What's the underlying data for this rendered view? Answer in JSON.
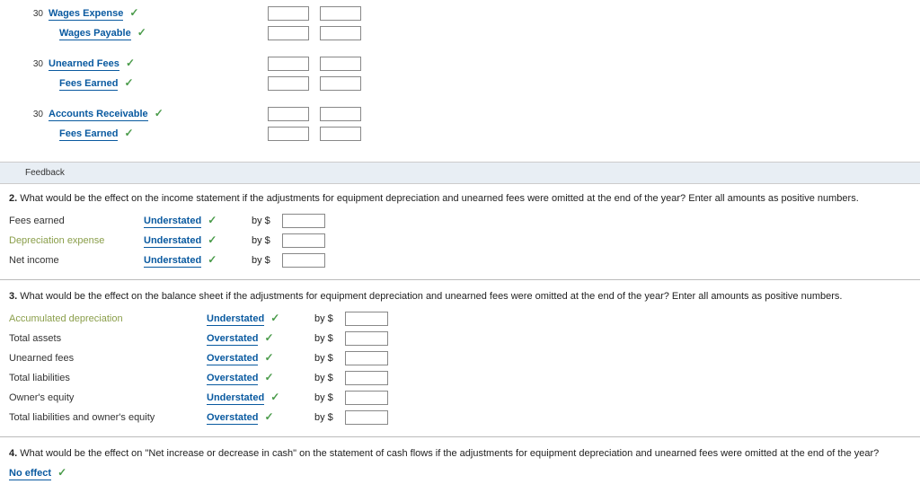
{
  "journal": {
    "groups": [
      {
        "day": "30",
        "rows": [
          {
            "account": "Wages Expense",
            "indent": false
          },
          {
            "account": "Wages Payable",
            "indent": true
          }
        ]
      },
      {
        "day": "30",
        "rows": [
          {
            "account": "Unearned Fees",
            "indent": false
          },
          {
            "account": "Fees Earned",
            "indent": true
          }
        ]
      },
      {
        "day": "30",
        "rows": [
          {
            "account": "Accounts Receivable",
            "indent": false
          },
          {
            "account": "Fees Earned",
            "indent": true
          }
        ]
      }
    ]
  },
  "feedback_label": "Feedback",
  "q2": {
    "num": "2.",
    "text": "What would be the effect on the income statement if the adjustments for equipment depreciation and unearned fees were omitted at the end of the year? Enter all amounts as positive numbers.",
    "rows": [
      {
        "label": "Fees earned",
        "green": false,
        "dd": "Understated"
      },
      {
        "label": "Depreciation expense",
        "green": true,
        "dd": "Understated"
      },
      {
        "label": "Net income",
        "green": false,
        "dd": "Understated"
      }
    ],
    "by": "by $"
  },
  "q3": {
    "num": "3.",
    "text": "What would be the effect on the balance sheet if the adjustments for equipment depreciation and unearned fees were omitted at the end of the year? Enter all amounts as positive numbers.",
    "rows": [
      {
        "label": "Accumulated depreciation",
        "green": true,
        "dd": "Understated"
      },
      {
        "label": "Total assets",
        "green": false,
        "dd": "Overstated"
      },
      {
        "label": "Unearned fees",
        "green": false,
        "dd": "Overstated"
      },
      {
        "label": "Total liabilities",
        "green": false,
        "dd": "Overstated"
      },
      {
        "label": "Owner's equity",
        "green": false,
        "dd": "Understated"
      },
      {
        "label": "Total liabilities and owner's equity",
        "green": false,
        "dd": "Overstated"
      }
    ],
    "by": "by $"
  },
  "q4": {
    "num": "4.",
    "text": "What would be the effect on \"Net increase or decrease in cash\" on the statement of cash flows if the adjustments for equipment depreciation and unearned fees were omitted at the end of the year?",
    "answer": "No effect"
  },
  "checkmark": "✓"
}
